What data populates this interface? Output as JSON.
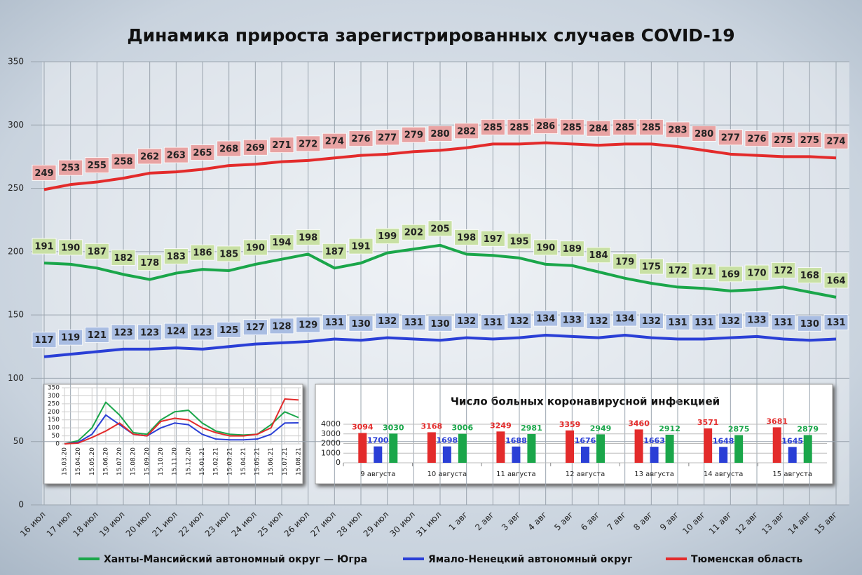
{
  "chart_data": [
    {
      "type": "line",
      "title": "Динамика прироста зарегистрированных случаев COVID-19",
      "categories": [
        "16 июл",
        "17 июл",
        "18 июл",
        "19 июл",
        "20 июл",
        "21 июл",
        "22 июл",
        "23 июл",
        "24 июл",
        "25 июл",
        "26 июл",
        "27 июл",
        "28 июл",
        "29 июл",
        "30 июл",
        "31 июл",
        "1 авг",
        "2 авг",
        "3 авг",
        "4 авг",
        "5 авг",
        "6 авг",
        "7 авг",
        "8 авг",
        "9 авг",
        "10 авг",
        "11 авг",
        "12 авг",
        "13 авг",
        "14 авг",
        "15 авг"
      ],
      "series": [
        {
          "name": "Ханты-Мансийский автономный округ — Югра",
          "color": "#1aa64a",
          "label_color": "#c8e0a4",
          "values": [
            191,
            190,
            187,
            182,
            178,
            183,
            186,
            185,
            190,
            194,
            198,
            187,
            191,
            199,
            202,
            205,
            198,
            197,
            195,
            190,
            189,
            184,
            179,
            175,
            172,
            171,
            169,
            170,
            172,
            168,
            164
          ]
        },
        {
          "name": "Ямало-Ненецкий автономный округ",
          "color": "#2a3fd6",
          "label_color": "#a9bde2",
          "values": [
            117,
            119,
            121,
            123,
            123,
            124,
            123,
            125,
            127,
            128,
            129,
            131,
            130,
            132,
            131,
            130,
            132,
            131,
            132,
            134,
            133,
            132,
            134,
            132,
            131,
            131,
            132,
            133,
            131,
            130,
            131
          ]
        },
        {
          "name": "Тюменская область",
          "color": "#e32b2b",
          "label_color": "#e8a3a3",
          "values": [
            249,
            253,
            255,
            258,
            262,
            263,
            265,
            268,
            269,
            271,
            272,
            274,
            276,
            277,
            279,
            280,
            282,
            285,
            285,
            286,
            285,
            284,
            285,
            285,
            283,
            280,
            277,
            276,
            275,
            275,
            274
          ]
        }
      ],
      "ylim": [
        0,
        350
      ],
      "yticks": [
        0,
        50,
        100,
        150,
        200,
        250,
        300,
        350
      ],
      "grid": true,
      "legend": "bottom"
    },
    {
      "type": "line",
      "categories": [
        "15.03.20",
        "15.04.20",
        "15.05.20",
        "15.06.20",
        "15.07.20",
        "15.08.20",
        "15.09.20",
        "15.10.20",
        "15.11.20",
        "15.12.20",
        "15.01.21",
        "15.02.21",
        "15.03.21",
        "15.04.21",
        "15.05.21",
        "15.06.21",
        "15.07.21",
        "15.08.21"
      ],
      "series": [
        {
          "color": "#1aa64a",
          "values": [
            0,
            20,
            100,
            260,
            180,
            70,
            60,
            150,
            200,
            210,
            130,
            80,
            60,
            55,
            60,
            120,
            200,
            164
          ]
        },
        {
          "color": "#2a3fd6",
          "values": [
            0,
            10,
            60,
            180,
            120,
            60,
            50,
            100,
            130,
            120,
            60,
            30,
            25,
            25,
            30,
            60,
            130,
            131
          ]
        },
        {
          "color": "#e32b2b",
          "values": [
            0,
            5,
            40,
            80,
            130,
            60,
            50,
            140,
            160,
            150,
            100,
            70,
            50,
            50,
            60,
            100,
            280,
            274
          ]
        }
      ],
      "ylim": [
        0,
        350
      ],
      "yticks": [
        0,
        50,
        100,
        150,
        200,
        250,
        300,
        350
      ],
      "grid": true
    },
    {
      "type": "bar",
      "title": "Число больных коронавирусной инфекцией",
      "categories": [
        "9 августа",
        "10 августа",
        "11 августа",
        "12 августа",
        "13 августа",
        "14 августа",
        "15 августа"
      ],
      "series": [
        {
          "color": "#e32b2b",
          "values": [
            3094,
            3168,
            3249,
            3359,
            3460,
            3571,
            3681
          ]
        },
        {
          "color": "#2a3fd6",
          "values": [
            1700,
            1698,
            1688,
            1676,
            1663,
            1648,
            1645
          ]
        },
        {
          "color": "#1aa64a",
          "values": [
            3030,
            3006,
            2981,
            2949,
            2912,
            2875,
            2879
          ]
        }
      ],
      "ylim": [
        0,
        4000
      ],
      "yticks": [
        0,
        1000,
        2000,
        3000,
        4000
      ],
      "grid": true
    }
  ]
}
